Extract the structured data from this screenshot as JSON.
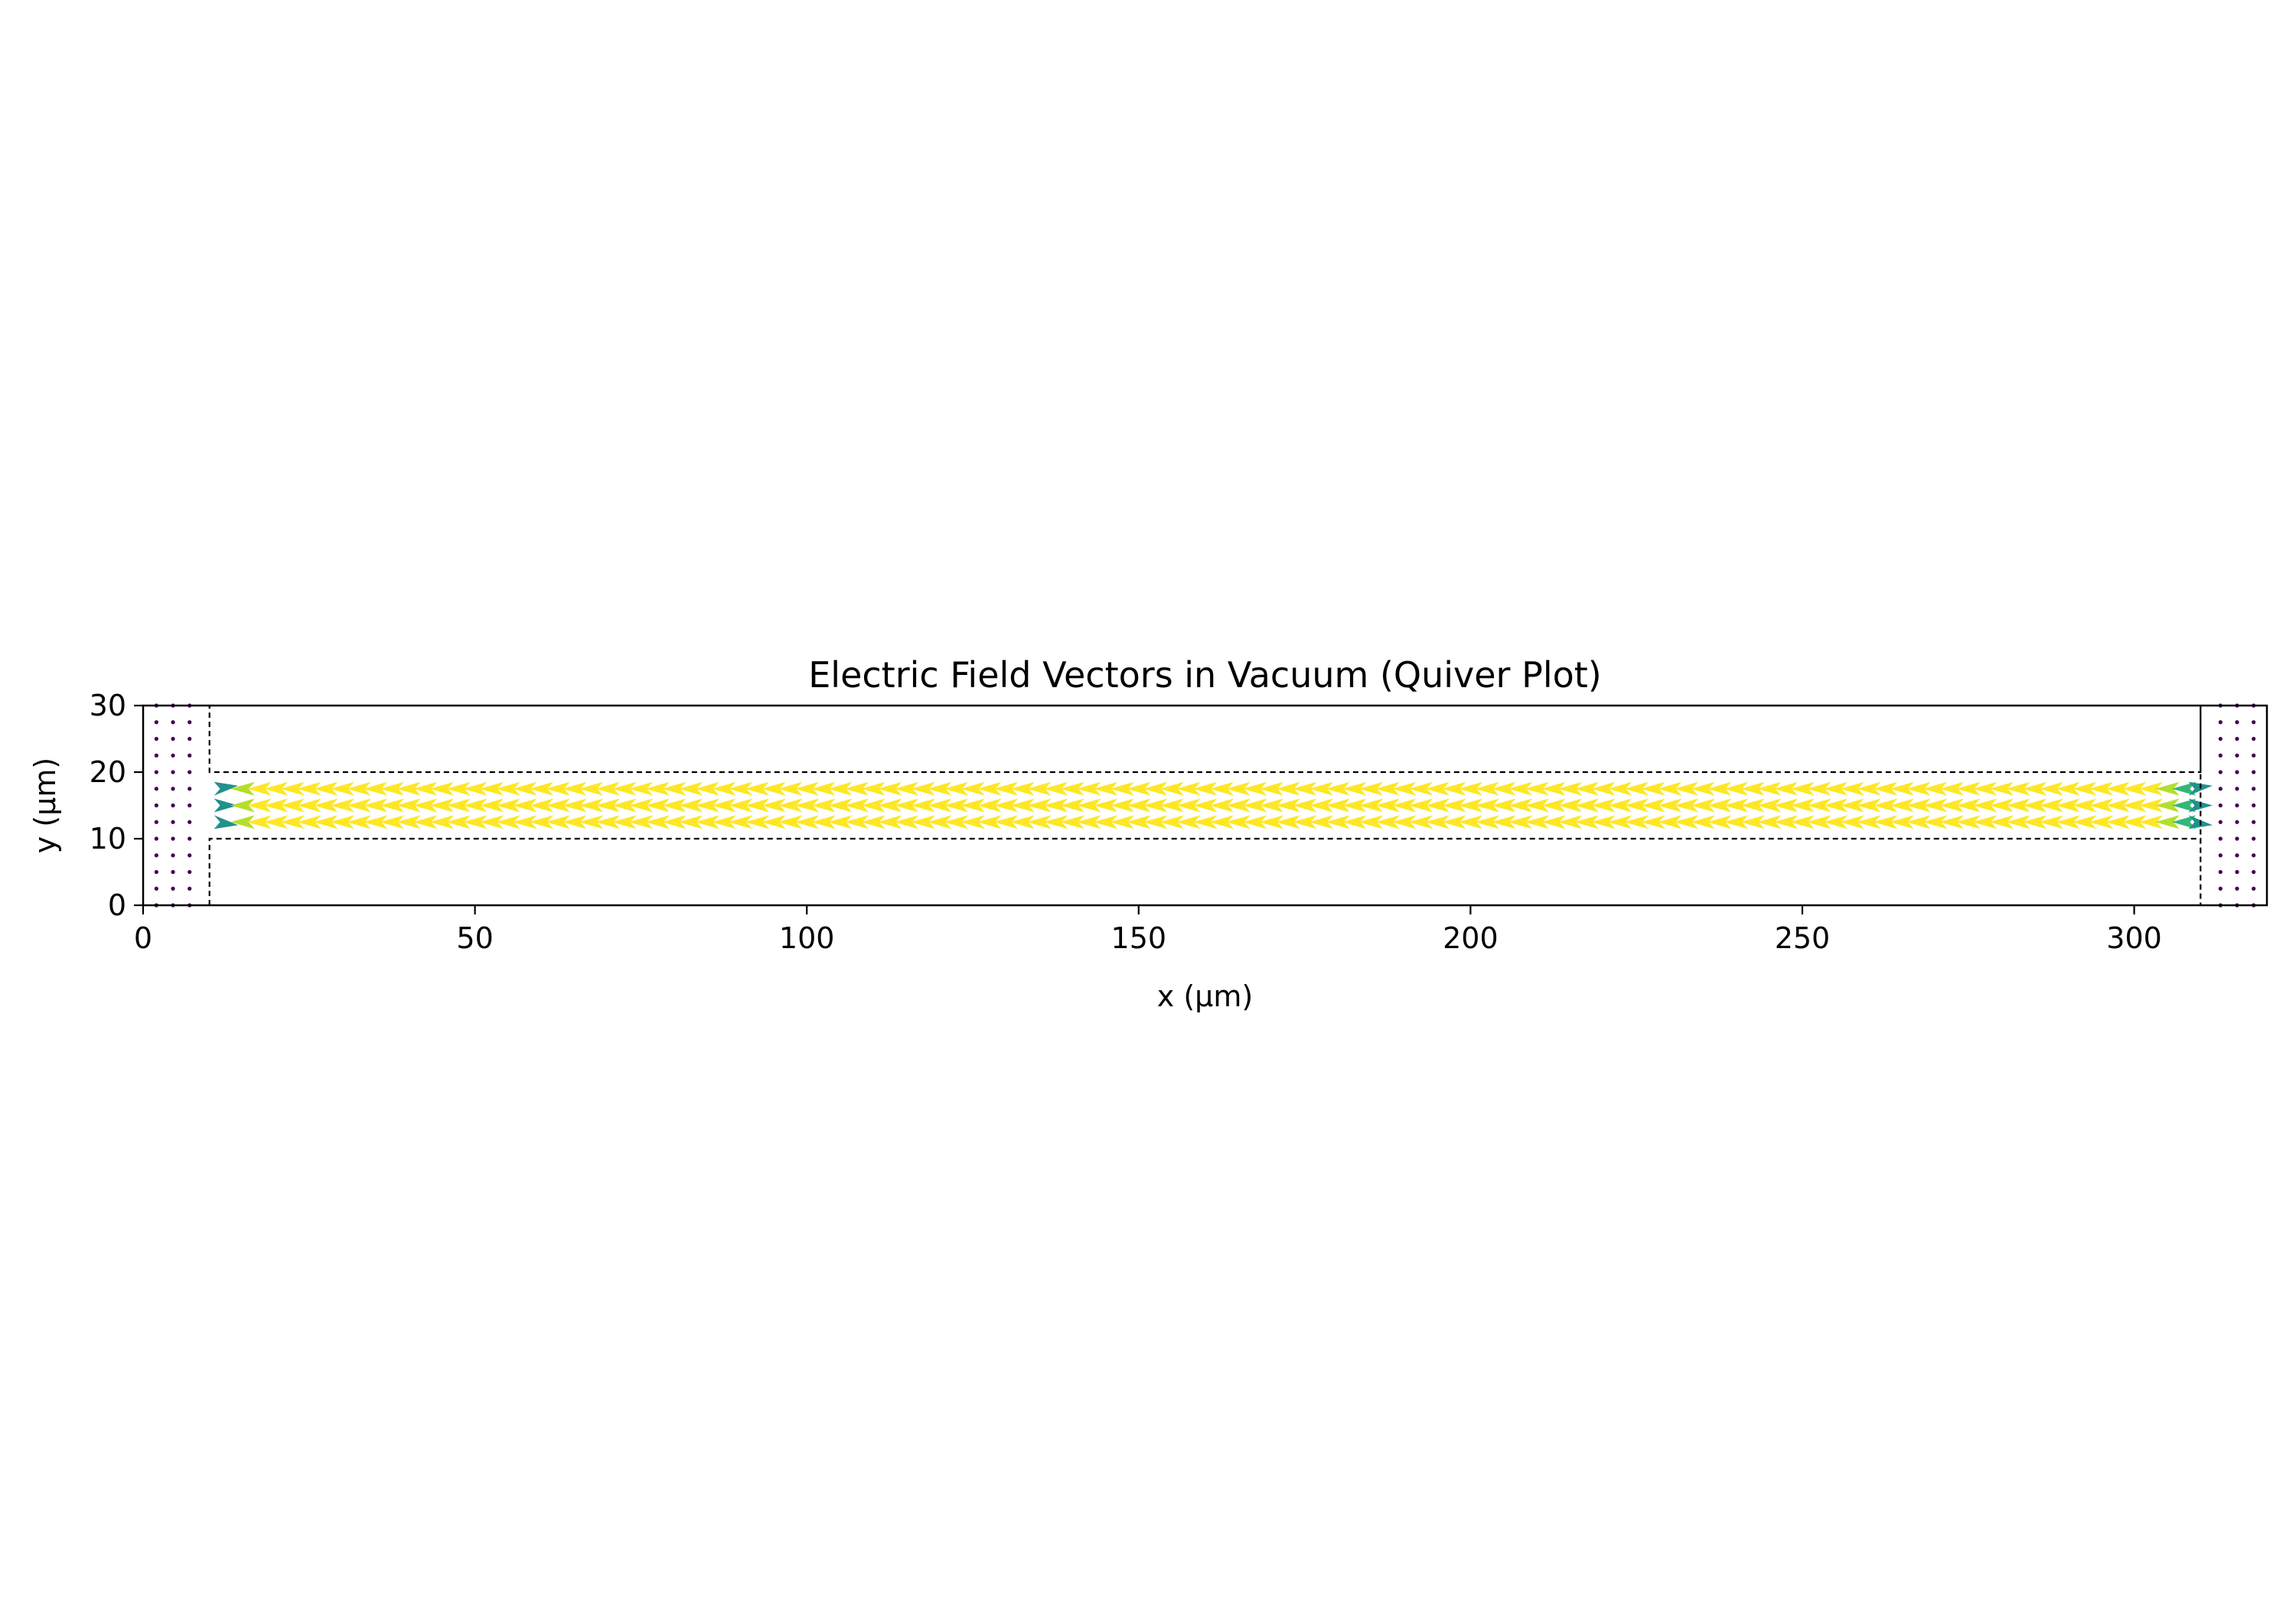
{
  "chart_data": {
    "type": "quiver",
    "title": "Electric Field Vectors in Vacuum (Quiver Plot)",
    "xlabel": "x (µm)",
    "ylabel": "y (µm)",
    "xlim": [
      0,
      320
    ],
    "ylim": [
      0,
      30
    ],
    "xticks": [
      0,
      50,
      100,
      150,
      200,
      250,
      300
    ],
    "yticks": [
      0,
      10,
      20,
      30
    ],
    "grid": false,
    "colormap": "viridis",
    "colors": {
      "high": "#fde725",
      "mid_high": "#b5de2b",
      "mid": "#35b779",
      "mid_low": "#21918c",
      "low": "#440154"
    },
    "boundary_outline": {
      "style": "dashed",
      "color": "#000000",
      "points": [
        [
          10,
          0
        ],
        [
          10,
          10
        ],
        [
          310,
          10
        ],
        [
          310,
          0
        ],
        [
          310,
          30
        ],
        [
          310,
          20
        ],
        [
          10,
          20
        ],
        [
          10,
          30
        ]
      ]
    },
    "vectors": {
      "channel": {
        "x_start": 10,
        "x_end": 310,
        "x_step": 2.5,
        "y_values": [
          12.5,
          15,
          17.5
        ],
        "direction": "left",
        "magnitude_level": "high"
      },
      "left_electrode": {
        "x_values": [
          2,
          4.5,
          7
        ],
        "y_min": 0,
        "y_max": 30,
        "y_step": 2.5,
        "magnitude_level": "low"
      },
      "right_electrode": {
        "x_values": [
          313,
          315.5,
          318
        ],
        "y_min": 0,
        "y_max": 30,
        "y_step": 2.5,
        "magnitude_level": "low"
      }
    }
  }
}
